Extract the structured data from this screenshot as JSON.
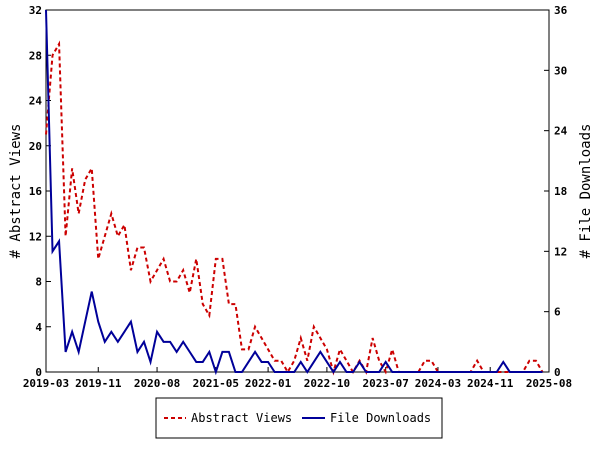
{
  "chart_data": {
    "type": "line",
    "title": "",
    "ylabel_left": "# Abstract Views",
    "ylabel_right": "# File Downloads",
    "xlim": [
      "2019-03",
      "2025-08"
    ],
    "ylim_left": [
      0,
      32
    ],
    "ylim_right": [
      0,
      36
    ],
    "grid": false,
    "legend_position": "bottom",
    "x_ticks": [
      "2019-03",
      "2019-11",
      "2020-08",
      "2021-05",
      "2022-01",
      "2022-10",
      "2023-07",
      "2024-03",
      "2024-11",
      "2025-08"
    ],
    "y_ticks_left": [
      0,
      4,
      8,
      12,
      16,
      20,
      24,
      28,
      32
    ],
    "y_ticks_right": [
      0,
      6,
      12,
      18,
      24,
      30,
      36
    ],
    "series": [
      {
        "name": "Abstract Views",
        "color": "#cc0000",
        "dash": "dashed",
        "axis": "left",
        "points": [
          [
            "2019-03",
            21
          ],
          [
            "2019-04",
            28
          ],
          [
            "2019-05",
            29
          ],
          [
            "2019-06",
            12
          ],
          [
            "2019-07",
            18
          ],
          [
            "2019-08",
            14
          ],
          [
            "2019-09",
            17
          ],
          [
            "2019-10",
            18
          ],
          [
            "2019-11",
            10
          ],
          [
            "2019-12",
            12
          ],
          [
            "2020-01",
            14
          ],
          [
            "2020-02",
            12
          ],
          [
            "2020-03",
            13
          ],
          [
            "2020-04",
            9
          ],
          [
            "2020-05",
            11
          ],
          [
            "2020-06",
            11
          ],
          [
            "2020-07",
            8
          ],
          [
            "2020-08",
            9
          ],
          [
            "2020-09",
            10
          ],
          [
            "2020-10",
            8
          ],
          [
            "2020-11",
            8
          ],
          [
            "2020-12",
            9
          ],
          [
            "2021-01",
            7
          ],
          [
            "2021-02",
            10
          ],
          [
            "2021-03",
            6
          ],
          [
            "2021-04",
            5
          ],
          [
            "2021-05",
            10
          ],
          [
            "2021-06",
            10
          ],
          [
            "2021-07",
            6
          ],
          [
            "2021-08",
            6
          ],
          [
            "2021-09",
            2
          ],
          [
            "2021-10",
            2
          ],
          [
            "2021-11",
            4
          ],
          [
            "2021-12",
            3
          ],
          [
            "2022-01",
            2
          ],
          [
            "2022-02",
            1
          ],
          [
            "2022-03",
            1
          ],
          [
            "2022-04",
            0
          ],
          [
            "2022-05",
            1
          ],
          [
            "2022-06",
            3
          ],
          [
            "2022-07",
            1
          ],
          [
            "2022-08",
            4
          ],
          [
            "2022-09",
            3
          ],
          [
            "2022-10",
            2
          ],
          [
            "2022-11",
            0
          ],
          [
            "2022-12",
            2
          ],
          [
            "2023-01",
            1
          ],
          [
            "2023-02",
            0
          ],
          [
            "2023-03",
            1
          ],
          [
            "2023-04",
            0
          ],
          [
            "2023-05",
            3
          ],
          [
            "2023-06",
            1
          ],
          [
            "2023-07",
            0
          ],
          [
            "2023-08",
            2
          ],
          [
            "2023-09",
            0
          ],
          [
            "2023-10",
            0
          ],
          [
            "2023-11",
            0
          ],
          [
            "2023-12",
            0
          ],
          [
            "2024-01",
            1
          ],
          [
            "2024-02",
            1
          ],
          [
            "2024-03",
            0
          ],
          [
            "2024-04",
            0
          ],
          [
            "2024-05",
            0
          ],
          [
            "2024-06",
            0
          ],
          [
            "2024-07",
            0
          ],
          [
            "2024-08",
            0
          ],
          [
            "2024-09",
            1
          ],
          [
            "2024-10",
            0
          ],
          [
            "2024-11",
            0
          ],
          [
            "2024-12",
            0
          ],
          [
            "2025-01",
            0
          ],
          [
            "2025-02",
            0
          ],
          [
            "2025-03",
            0
          ],
          [
            "2025-04",
            0
          ],
          [
            "2025-05",
            1
          ],
          [
            "2025-06",
            1
          ],
          [
            "2025-07",
            0
          ]
        ]
      },
      {
        "name": "File Downloads",
        "color": "#000099",
        "dash": "solid",
        "axis": "right",
        "points": [
          [
            "2019-03",
            36
          ],
          [
            "2019-04",
            12
          ],
          [
            "2019-05",
            13
          ],
          [
            "2019-06",
            2
          ],
          [
            "2019-07",
            4
          ],
          [
            "2019-08",
            2
          ],
          [
            "2019-09",
            5
          ],
          [
            "2019-10",
            8
          ],
          [
            "2019-11",
            5
          ],
          [
            "2019-12",
            3
          ],
          [
            "2020-01",
            4
          ],
          [
            "2020-02",
            3
          ],
          [
            "2020-03",
            4
          ],
          [
            "2020-04",
            5
          ],
          [
            "2020-05",
            2
          ],
          [
            "2020-06",
            3
          ],
          [
            "2020-07",
            1
          ],
          [
            "2020-08",
            4
          ],
          [
            "2020-09",
            3
          ],
          [
            "2020-10",
            3
          ],
          [
            "2020-11",
            2
          ],
          [
            "2020-12",
            3
          ],
          [
            "2021-01",
            2
          ],
          [
            "2021-02",
            1
          ],
          [
            "2021-03",
            1
          ],
          [
            "2021-04",
            2
          ],
          [
            "2021-05",
            0
          ],
          [
            "2021-06",
            2
          ],
          [
            "2021-07",
            2
          ],
          [
            "2021-08",
            0
          ],
          [
            "2021-09",
            0
          ],
          [
            "2021-10",
            1
          ],
          [
            "2021-11",
            2
          ],
          [
            "2021-12",
            1
          ],
          [
            "2022-01",
            1
          ],
          [
            "2022-02",
            0
          ],
          [
            "2022-03",
            0
          ],
          [
            "2022-04",
            0
          ],
          [
            "2022-05",
            0
          ],
          [
            "2022-06",
            1
          ],
          [
            "2022-07",
            0
          ],
          [
            "2022-08",
            1
          ],
          [
            "2022-09",
            2
          ],
          [
            "2022-10",
            1
          ],
          [
            "2022-11",
            0
          ],
          [
            "2022-12",
            1
          ],
          [
            "2023-01",
            0
          ],
          [
            "2023-02",
            0
          ],
          [
            "2023-03",
            1
          ],
          [
            "2023-04",
            0
          ],
          [
            "2023-05",
            0
          ],
          [
            "2023-06",
            0
          ],
          [
            "2023-07",
            1
          ],
          [
            "2023-08",
            0
          ],
          [
            "2023-09",
            0
          ],
          [
            "2023-10",
            0
          ],
          [
            "2023-11",
            0
          ],
          [
            "2023-12",
            0
          ],
          [
            "2024-01",
            0
          ],
          [
            "2024-02",
            0
          ],
          [
            "2024-03",
            0
          ],
          [
            "2024-04",
            0
          ],
          [
            "2024-05",
            0
          ],
          [
            "2024-06",
            0
          ],
          [
            "2024-07",
            0
          ],
          [
            "2024-08",
            0
          ],
          [
            "2024-09",
            0
          ],
          [
            "2024-10",
            0
          ],
          [
            "2024-11",
            0
          ],
          [
            "2024-12",
            0
          ],
          [
            "2025-01",
            1
          ],
          [
            "2025-02",
            0
          ],
          [
            "2025-03",
            0
          ],
          [
            "2025-04",
            0
          ],
          [
            "2025-05",
            0
          ],
          [
            "2025-06",
            0
          ],
          [
            "2025-07",
            0
          ]
        ]
      }
    ]
  }
}
